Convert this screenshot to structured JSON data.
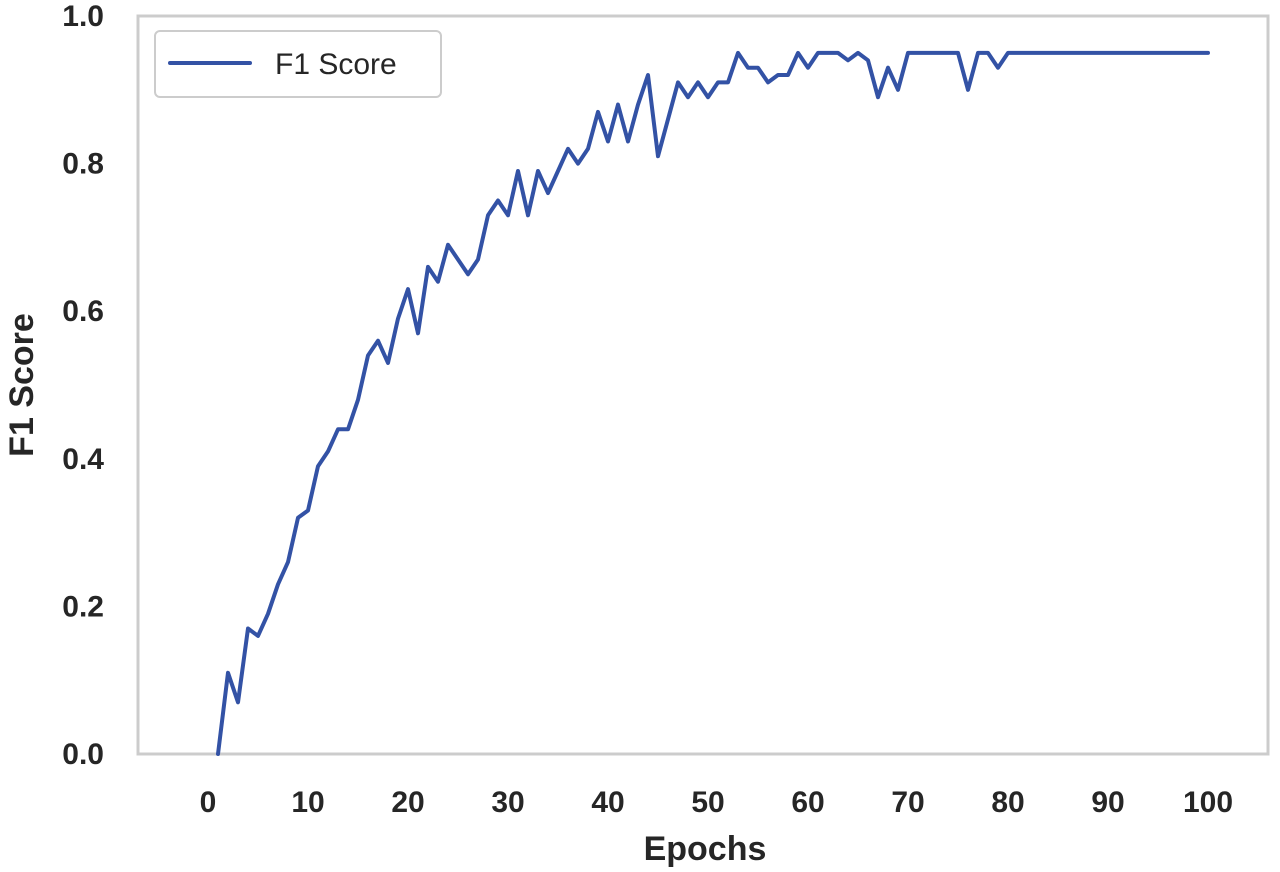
{
  "chart_data": {
    "type": "line",
    "xlabel": "Epochs",
    "ylabel": "F1 Score",
    "xlim": [
      -7,
      106
    ],
    "ylim": [
      0,
      1.0
    ],
    "xticks": [
      0,
      10,
      20,
      30,
      40,
      50,
      60,
      70,
      80,
      90,
      100
    ],
    "yticks": [
      0.0,
      0.2,
      0.4,
      0.6,
      0.8,
      1.0
    ],
    "xtick_labels": [
      "0",
      "10",
      "20",
      "30",
      "40",
      "50",
      "60",
      "70",
      "80",
      "90",
      "100"
    ],
    "ytick_labels": [
      "0.0",
      "0.2",
      "0.4",
      "0.6",
      "0.8",
      "1.0"
    ],
    "grid": false,
    "legend": {
      "position": "top-left",
      "entries": [
        "F1 Score"
      ]
    },
    "series": [
      {
        "name": "F1 Score",
        "color": "#3352a5",
        "x": [
          1,
          2,
          3,
          4,
          5,
          6,
          7,
          8,
          9,
          10,
          11,
          12,
          13,
          14,
          15,
          16,
          17,
          18,
          19,
          20,
          21,
          22,
          23,
          24,
          25,
          26,
          27,
          28,
          29,
          30,
          31,
          32,
          33,
          34,
          35,
          36,
          37,
          38,
          39,
          40,
          41,
          42,
          43,
          44,
          45,
          46,
          47,
          48,
          49,
          50,
          51,
          52,
          53,
          54,
          55,
          56,
          57,
          58,
          59,
          60,
          61,
          62,
          63,
          64,
          65,
          66,
          67,
          68,
          69,
          70,
          71,
          72,
          73,
          74,
          75,
          76,
          77,
          78,
          79,
          80,
          81,
          82,
          83,
          84,
          85,
          86,
          87,
          88,
          89,
          90,
          91,
          92,
          93,
          94,
          95,
          96,
          97,
          98,
          99,
          100
        ],
        "values": [
          0.0,
          0.11,
          0.07,
          0.17,
          0.16,
          0.19,
          0.23,
          0.26,
          0.32,
          0.33,
          0.39,
          0.41,
          0.44,
          0.44,
          0.48,
          0.54,
          0.56,
          0.53,
          0.59,
          0.63,
          0.57,
          0.66,
          0.64,
          0.69,
          0.67,
          0.65,
          0.67,
          0.73,
          0.75,
          0.73,
          0.79,
          0.73,
          0.79,
          0.76,
          0.79,
          0.82,
          0.8,
          0.82,
          0.87,
          0.83,
          0.88,
          0.83,
          0.88,
          0.92,
          0.81,
          0.86,
          0.91,
          0.89,
          0.91,
          0.89,
          0.91,
          0.91,
          0.95,
          0.93,
          0.93,
          0.91,
          0.92,
          0.92,
          0.95,
          0.93,
          0.95,
          0.95,
          0.95,
          0.94,
          0.95,
          0.94,
          0.89,
          0.93,
          0.9,
          0.95,
          0.95,
          0.95,
          0.95,
          0.95,
          0.95,
          0.9,
          0.95,
          0.95,
          0.93,
          0.95,
          0.95,
          0.95,
          0.95,
          0.95,
          0.95,
          0.95,
          0.95,
          0.95,
          0.95,
          0.95,
          0.95,
          0.95,
          0.95,
          0.95,
          0.95,
          0.95,
          0.95,
          0.95,
          0.95,
          0.95
        ]
      }
    ]
  }
}
